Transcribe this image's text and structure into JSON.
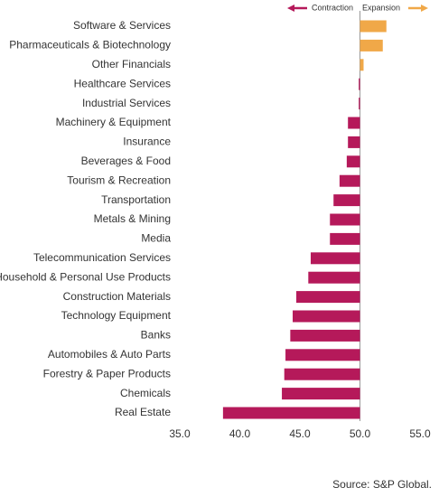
{
  "chart_data": {
    "type": "bar",
    "orientation": "horizontal",
    "categories": [
      "Software & Services",
      "Pharmaceuticals & Biotechnology",
      "Other Financials",
      "Healthcare Services",
      "Industrial Services",
      "Machinery & Equipment",
      "Insurance",
      "Beverages & Food",
      "Tourism & Recreation",
      "Transportation",
      "Metals & Mining",
      "Media",
      "Telecommunication Services",
      "Household & Personal Use Products",
      "Construction Materials",
      "Technology Equipment",
      "Banks",
      "Automobiles & Auto Parts",
      "Forestry & Paper Products",
      "Chemicals",
      "Real Estate"
    ],
    "values": [
      52.2,
      51.9,
      50.3,
      49.9,
      49.9,
      49.0,
      49.0,
      48.9,
      48.3,
      47.8,
      47.5,
      47.5,
      45.9,
      45.7,
      44.7,
      44.4,
      44.2,
      43.8,
      43.7,
      43.5,
      38.6
    ],
    "baseline": 50,
    "legend": [
      {
        "name": "Contraction",
        "color": "#b5195a"
      },
      {
        "name": "Expansion",
        "color": "#f0a848"
      }
    ],
    "xlim": [
      35,
      55
    ],
    "xticks": [
      {
        "value": 35,
        "label": "35.0"
      },
      {
        "value": 40,
        "label": "40.0"
      },
      {
        "value": 45,
        "label": "45.0"
      },
      {
        "value": 50,
        "label": "50.0"
      },
      {
        "value": 55,
        "label": "55.0"
      }
    ],
    "source": "Source: S&P Global."
  }
}
